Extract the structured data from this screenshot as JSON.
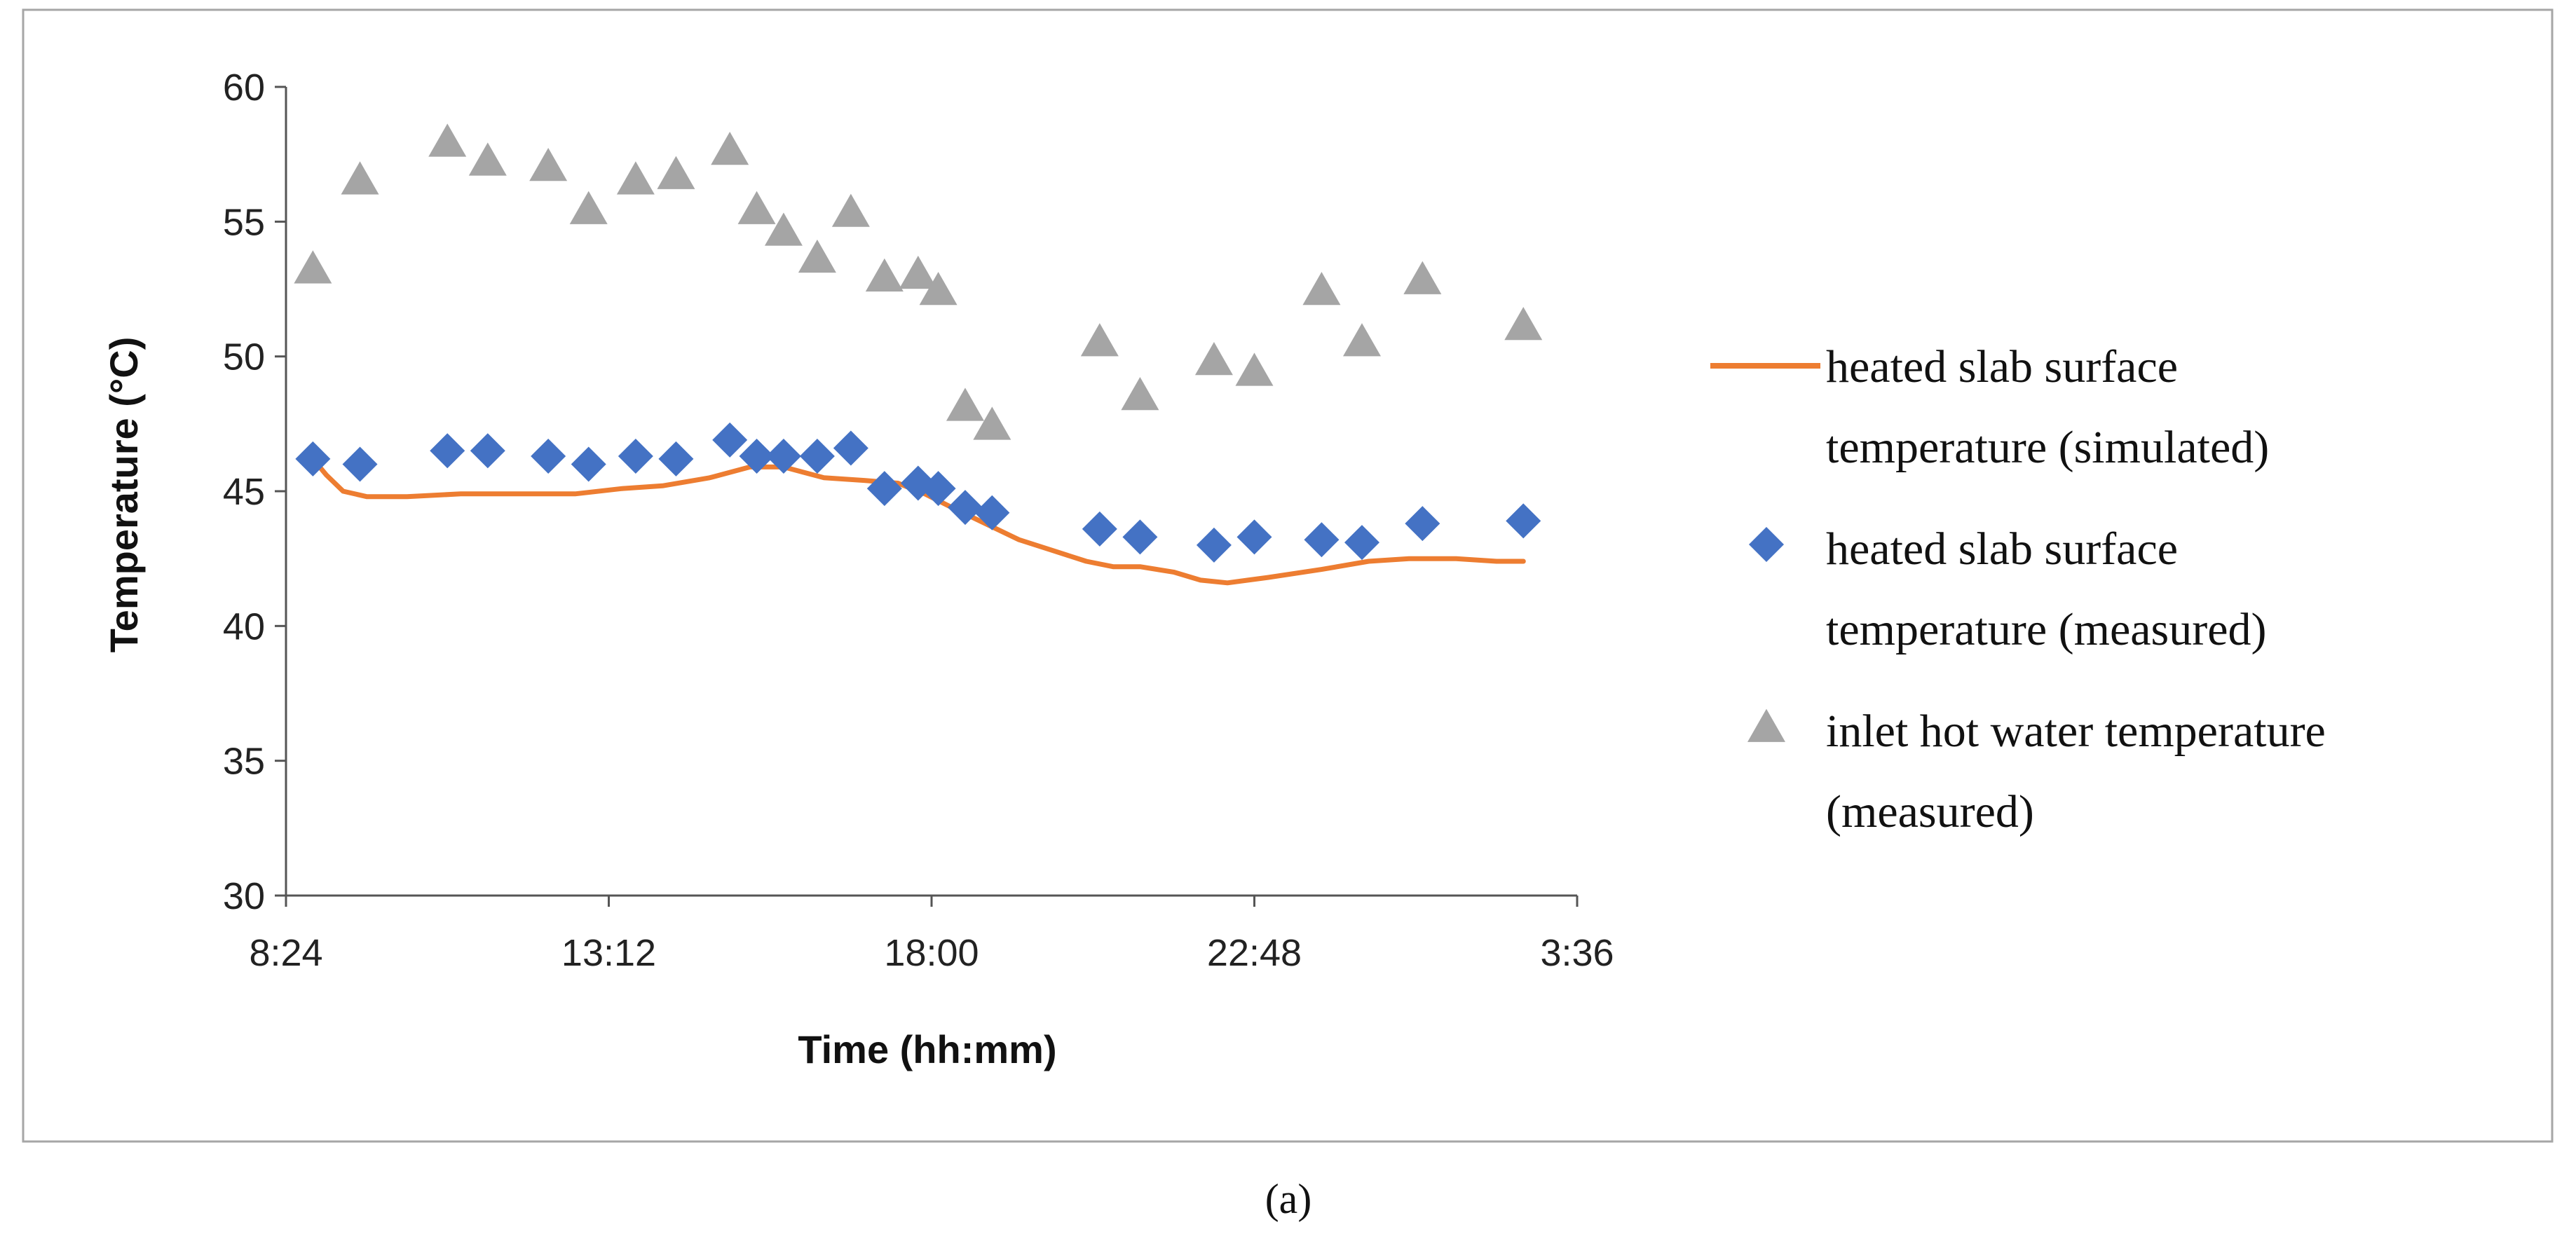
{
  "caption": "(a)",
  "chart_data": {
    "type": "scatter",
    "title": "",
    "xlabel": "Time (hh:mm)",
    "ylabel": "Temperature (°C)",
    "ylim": [
      30,
      60
    ],
    "yticks": [
      30,
      35,
      40,
      45,
      50,
      55,
      60
    ],
    "xlim_hours": [
      8.4,
      27.6
    ],
    "xticks": [
      {
        "value": 8.4,
        "label": "8:24"
      },
      {
        "value": 13.2,
        "label": "13:12"
      },
      {
        "value": 18.0,
        "label": "18:00"
      },
      {
        "value": 22.8,
        "label": "22:48"
      },
      {
        "value": 27.6,
        "label": "3:36"
      }
    ],
    "grid": false,
    "legend_position": "right",
    "series": [
      {
        "name": "heated slab surface temperature (simulated)",
        "legend_lines": [
          "heated slab surface",
          "temperature (simulated)"
        ],
        "kind": "line",
        "color": "#ED7D31",
        "x": [
          8.8,
          9.0,
          9.25,
          9.6,
          10.2,
          11.0,
          12.0,
          12.7,
          13.4,
          14.0,
          14.7,
          15.3,
          15.8,
          16.4,
          17.0,
          17.5,
          17.9,
          18.3,
          18.8,
          19.3,
          19.8,
          20.3,
          20.7,
          21.1,
          21.6,
          22.0,
          22.4,
          23.0,
          23.8,
          24.5,
          25.1,
          25.8,
          26.4,
          26.8
        ],
        "y": [
          46.2,
          45.6,
          45.0,
          44.8,
          44.8,
          44.9,
          44.9,
          44.9,
          45.1,
          45.2,
          45.5,
          45.9,
          45.9,
          45.5,
          45.4,
          45.3,
          44.9,
          44.4,
          43.8,
          43.2,
          42.8,
          42.4,
          42.2,
          42.2,
          42.0,
          41.7,
          41.6,
          41.8,
          42.1,
          42.4,
          42.5,
          42.5,
          42.4,
          42.4
        ]
      },
      {
        "name": "heated slab surface temperature (measured)",
        "legend_lines": [
          "heated slab surface",
          "temperature (measured)"
        ],
        "kind": "diamond",
        "color": "#4472C4",
        "x": [
          8.8,
          9.5,
          10.8,
          11.4,
          12.3,
          12.9,
          13.6,
          14.2,
          15.0,
          15.4,
          15.8,
          16.3,
          16.8,
          17.3,
          17.8,
          18.1,
          18.5,
          18.9,
          20.5,
          21.1,
          22.2,
          22.8,
          23.8,
          24.4,
          25.3,
          26.8
        ],
        "y": [
          46.2,
          46.0,
          46.5,
          46.5,
          46.3,
          46.0,
          46.3,
          46.2,
          46.9,
          46.3,
          46.3,
          46.3,
          46.6,
          45.1,
          45.3,
          45.1,
          44.4,
          44.2,
          43.6,
          43.3,
          43.0,
          43.3,
          43.2,
          43.1,
          43.8,
          43.9
        ]
      },
      {
        "name": "inlet hot water temperature (measured)",
        "legend_lines": [
          "inlet hot water temperature",
          "(measured)"
        ],
        "kind": "triangle",
        "color": "#A5A5A5",
        "x": [
          8.8,
          9.5,
          10.8,
          11.4,
          12.3,
          12.9,
          13.6,
          14.2,
          15.0,
          15.4,
          15.8,
          16.3,
          16.8,
          17.3,
          17.8,
          18.1,
          18.5,
          18.9,
          20.5,
          21.1,
          22.2,
          22.8,
          23.8,
          24.4,
          25.3,
          26.8
        ],
        "y": [
          53.2,
          56.5,
          57.9,
          57.2,
          57.0,
          55.4,
          56.5,
          56.7,
          57.6,
          55.4,
          54.6,
          53.6,
          55.3,
          52.9,
          53.0,
          52.4,
          48.1,
          47.4,
          50.5,
          48.5,
          49.8,
          49.4,
          52.4,
          50.5,
          52.8,
          51.1
        ]
      }
    ]
  }
}
